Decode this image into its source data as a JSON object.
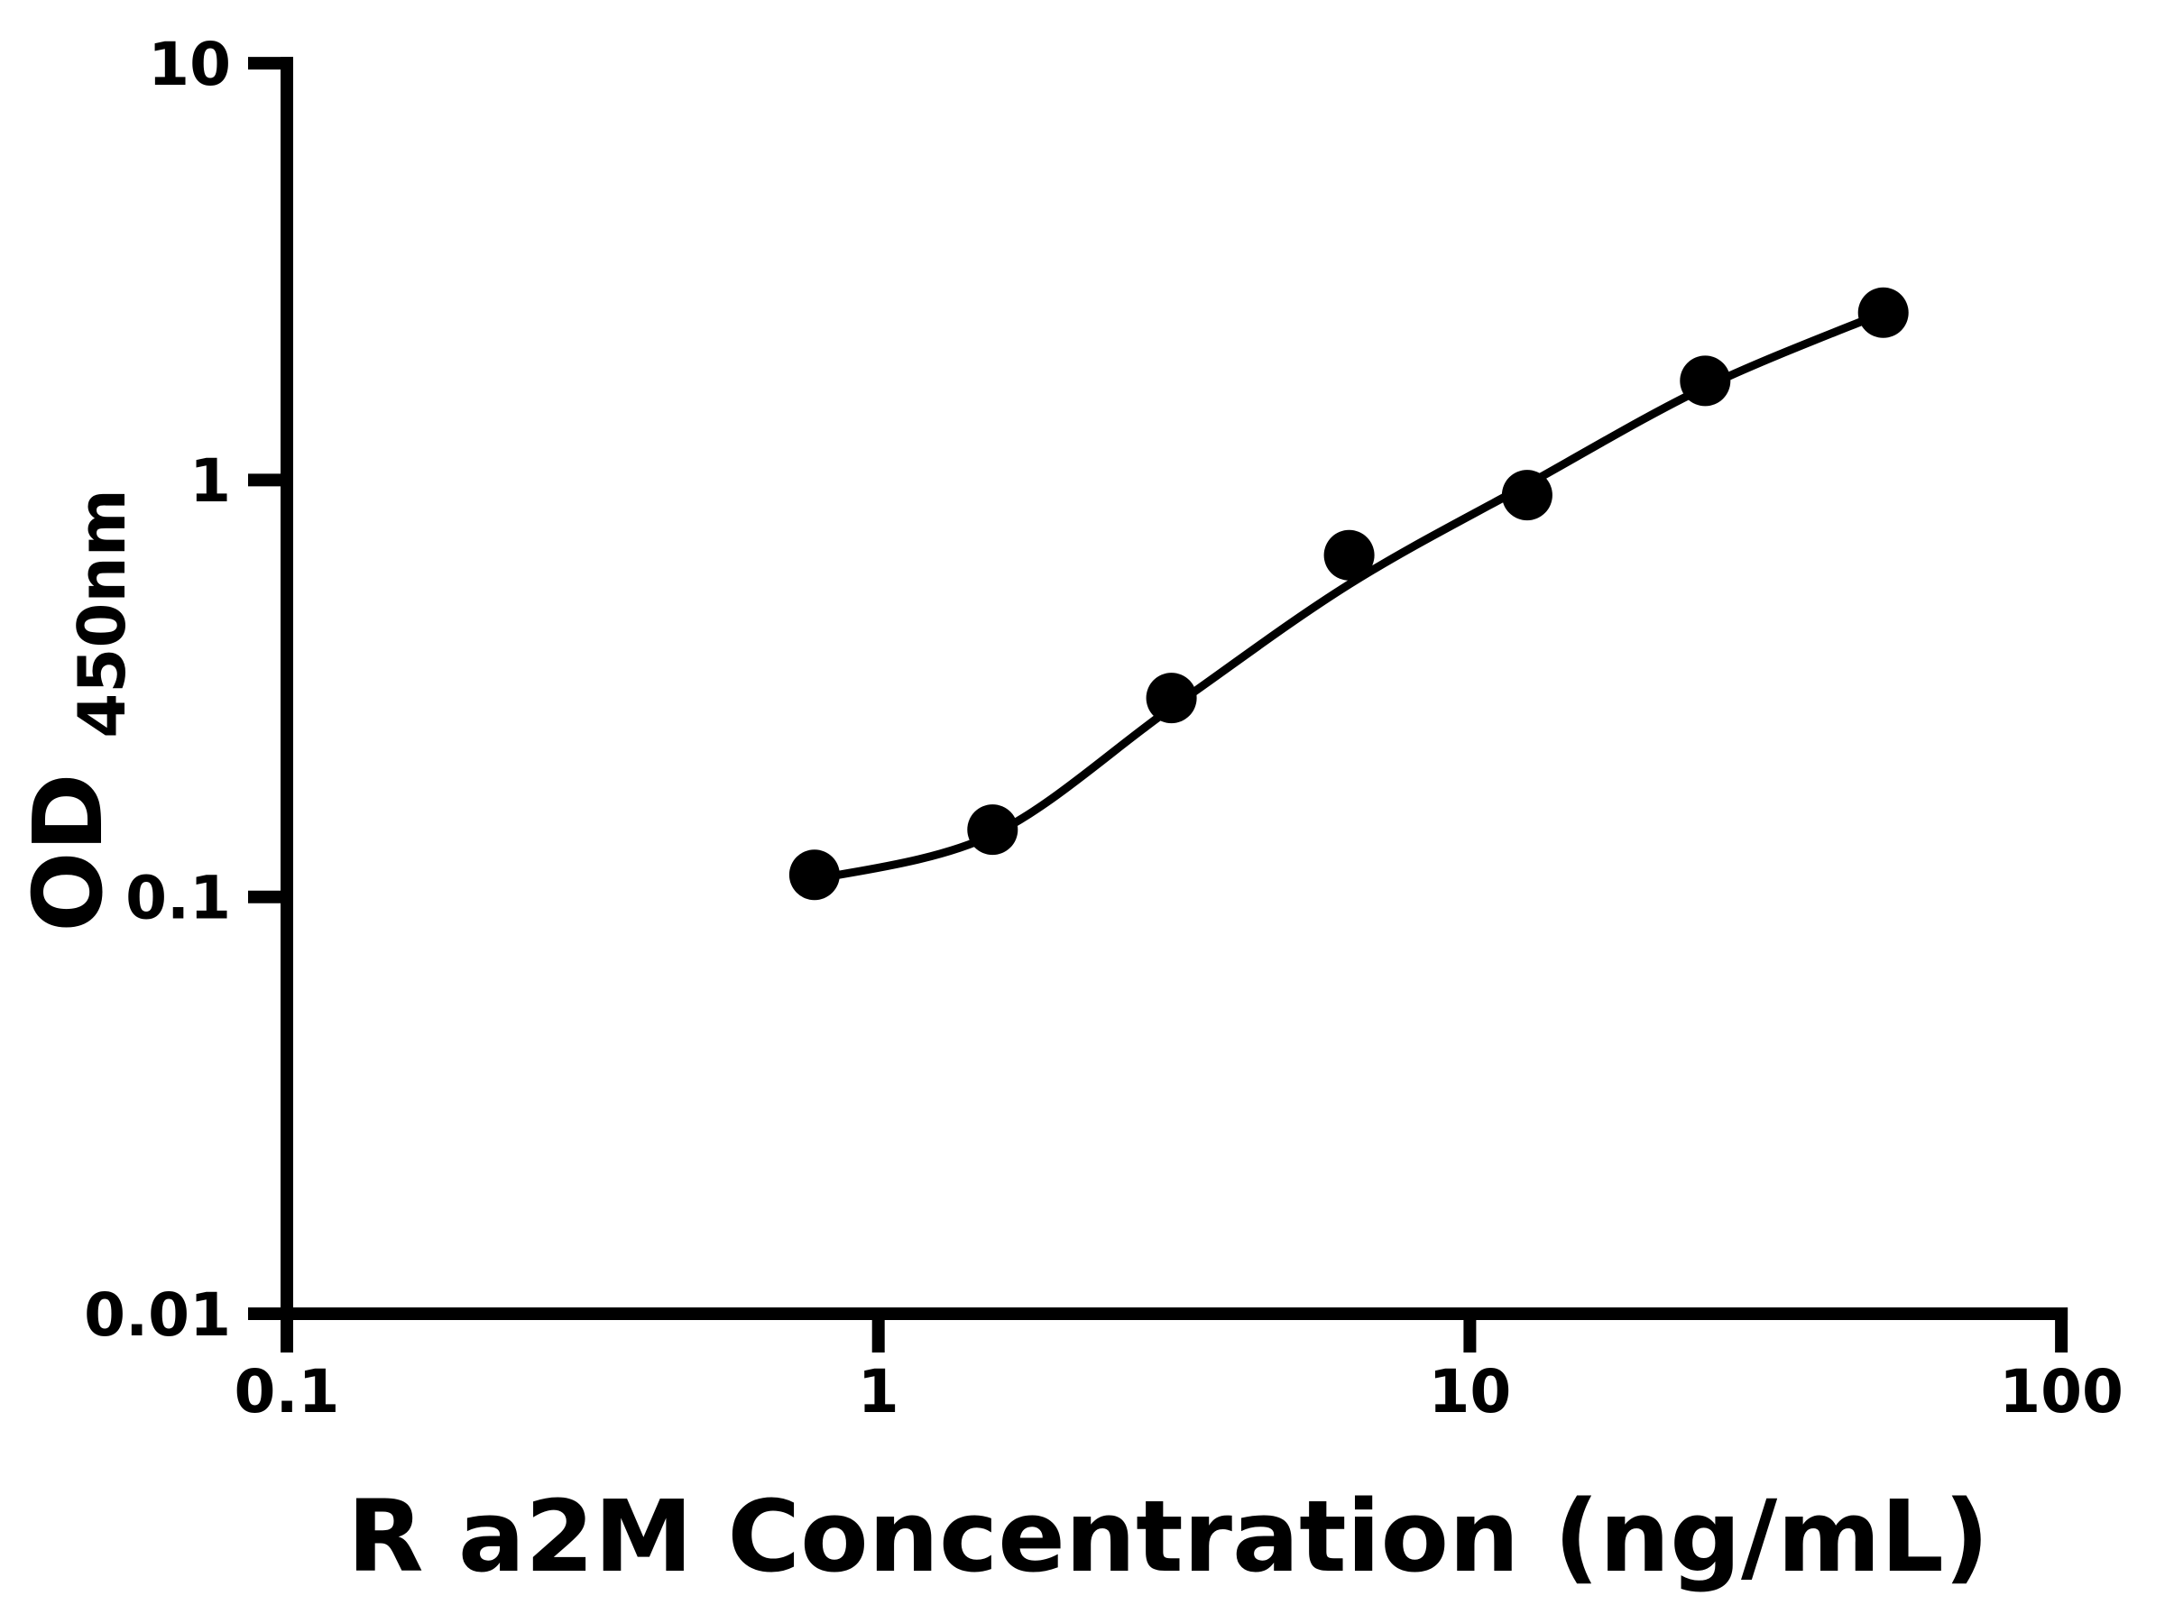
{
  "chart_data": {
    "type": "scatter",
    "subtype": "standard-curve-log-log",
    "title": "",
    "xlabel": "R a2M Concentration (ng/mL)",
    "ylabel_main": "OD",
    "ylabel_sub": "450nm",
    "x_scale": "log",
    "y_scale": "log",
    "xlim": [
      0.1,
      100
    ],
    "ylim": [
      0.01,
      10
    ],
    "x_ticks": {
      "values": [
        0.1,
        1,
        10,
        100
      ],
      "labels": [
        "0.1",
        "1",
        "10",
        "100"
      ]
    },
    "y_ticks": {
      "values": [
        0.01,
        0.1,
        1,
        10
      ],
      "labels": [
        "0.01",
        "0.1",
        "1",
        "10"
      ]
    },
    "grid": "off",
    "legend": "none",
    "marker_color": "#000000",
    "line_color": "#000000",
    "background_color": "#ffffff",
    "points": [
      {
        "conc": 0.78,
        "od": 0.113
      },
      {
        "conc": 1.56,
        "od": 0.145
      },
      {
        "conc": 3.13,
        "od": 0.3
      },
      {
        "conc": 6.25,
        "od": 0.66
      },
      {
        "conc": 12.5,
        "od": 0.92
      },
      {
        "conc": 25,
        "od": 1.73
      },
      {
        "conc": 50,
        "od": 2.52
      }
    ],
    "fit_curve_od": [
      0.11,
      0.141,
      0.284,
      0.562,
      0.975,
      1.67,
      2.52
    ]
  }
}
